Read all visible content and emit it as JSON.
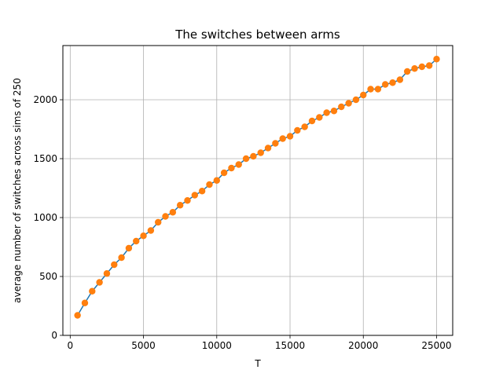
{
  "chart_data": {
    "type": "line",
    "title": "The switches between arms",
    "xlabel": "T",
    "ylabel": "average number of switches across sims of 250",
    "xlim": [
      -500,
      26100
    ],
    "ylim": [
      0,
      2460
    ],
    "xticks": [
      0,
      5000,
      10000,
      15000,
      20000,
      25000
    ],
    "yticks": [
      0,
      500,
      1000,
      1500,
      2000
    ],
    "grid": true,
    "series": [
      {
        "line_color": "#1f77b4",
        "marker_color": "#ff7f0e",
        "x": [
          500,
          1000,
          1500,
          2000,
          2500,
          3000,
          3500,
          4000,
          4500,
          5000,
          5500,
          6000,
          6500,
          7000,
          7500,
          8000,
          8500,
          9000,
          9500,
          10000,
          10500,
          11000,
          11500,
          12000,
          12500,
          13000,
          13500,
          14000,
          14500,
          15000,
          15500,
          16000,
          16500,
          17000,
          17500,
          18000,
          18500,
          19000,
          19500,
          20000,
          20500,
          21000,
          21500,
          22000,
          22500,
          23000,
          23500,
          24000,
          24500,
          25000
        ],
        "y": [
          170,
          275,
          375,
          450,
          525,
          600,
          660,
          740,
          800,
          845,
          890,
          960,
          1010,
          1045,
          1105,
          1145,
          1190,
          1225,
          1280,
          1315,
          1380,
          1420,
          1450,
          1500,
          1520,
          1550,
          1590,
          1630,
          1670,
          1690,
          1740,
          1770,
          1820,
          1850,
          1890,
          1905,
          1940,
          1970,
          2000,
          2040,
          2090,
          2090,
          2130,
          2145,
          2170,
          2240,
          2265,
          2280,
          2290,
          2345
        ]
      }
    ]
  }
}
